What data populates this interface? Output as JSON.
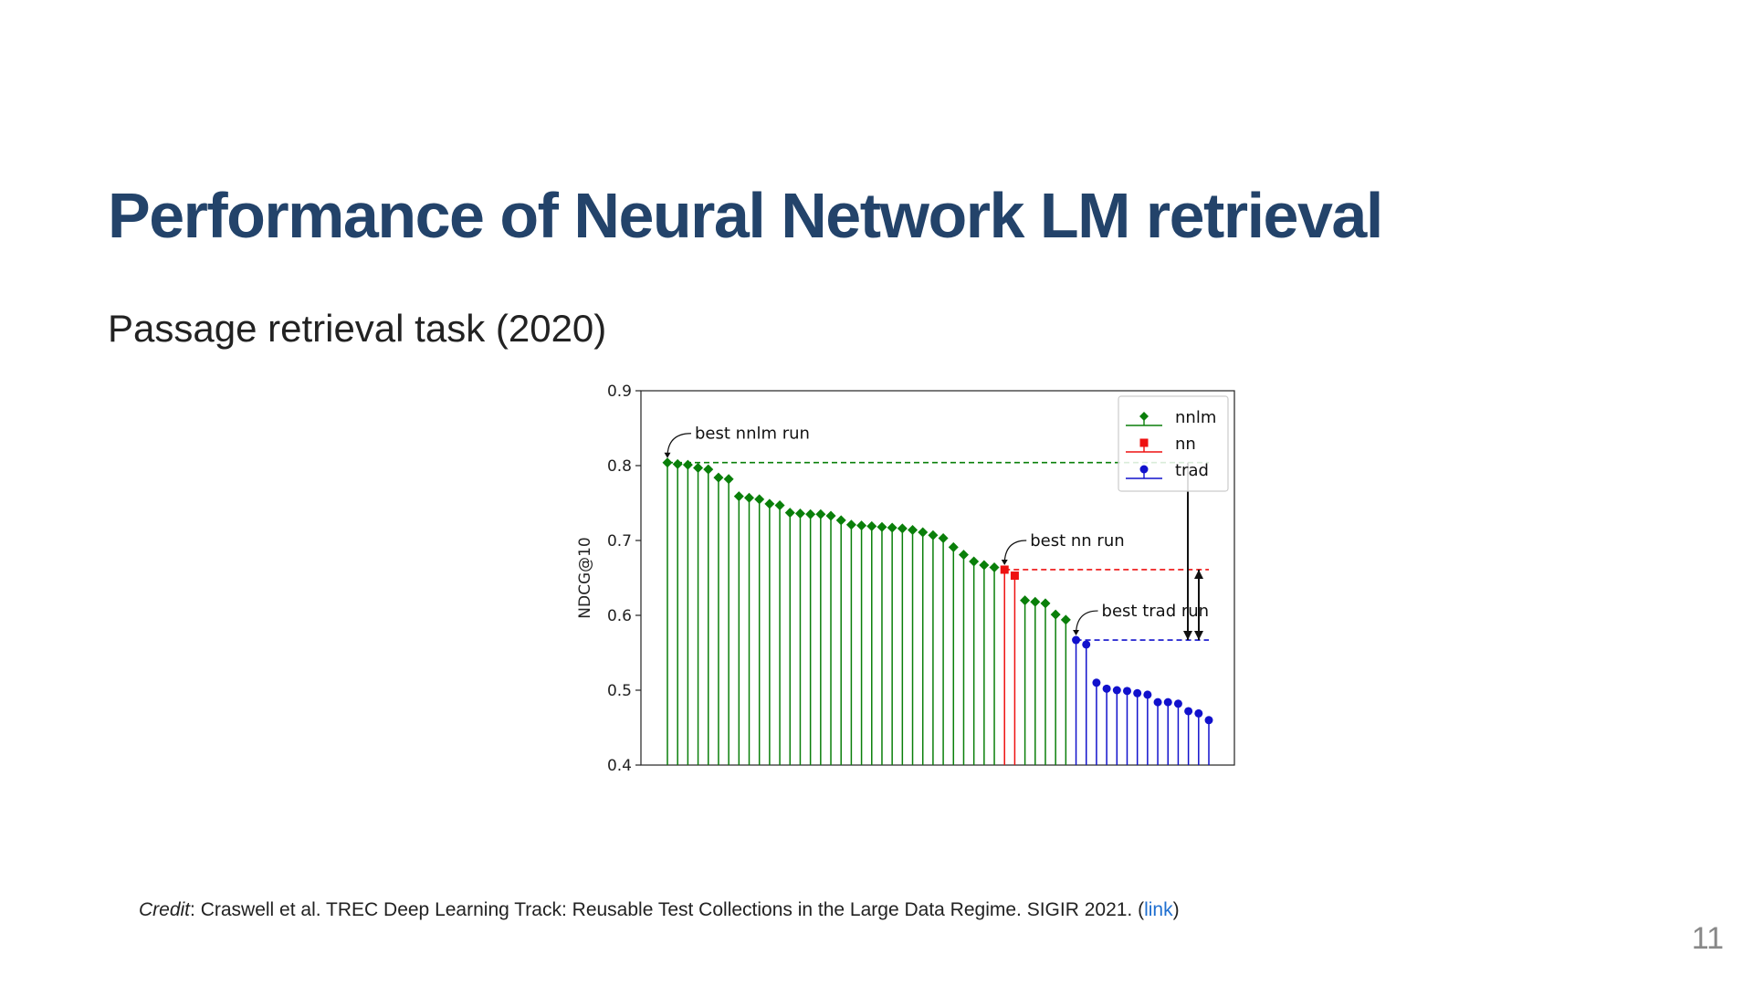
{
  "slide": {
    "title": "Performance of Neural Network LM retrieval",
    "subtitle": "Passage retrieval task (2020)",
    "credit_label": "Credit",
    "credit_text": ": Craswell et al. TREC Deep Learning Track: Reusable Test Collections in the Large Data Regime. SIGIR 2021. (",
    "credit_link": "link",
    "credit_close": ")",
    "page_number": "11"
  },
  "chart_data": {
    "type": "scatter",
    "title": "",
    "xlabel": "",
    "ylabel": "NDCG@10",
    "ylim": [
      0.4,
      0.9
    ],
    "yticks": [
      "0.4",
      "0.5",
      "0.6",
      "0.7",
      "0.8",
      "0.9"
    ],
    "grid": false,
    "legend_position": "top-right",
    "series": [
      {
        "name": "nnlm",
        "marker": "diamond",
        "color": "#0a7f0a",
        "values": [
          0.804,
          0.802,
          0.801,
          0.797,
          0.795,
          0.784,
          0.782,
          0.759,
          0.757,
          0.755,
          0.749,
          0.747,
          0.737,
          0.736,
          0.735,
          0.735,
          0.733,
          0.727,
          0.721,
          0.72,
          0.719,
          0.718,
          0.717,
          0.716,
          0.714,
          0.711,
          0.707,
          0.703,
          0.691,
          0.681,
          0.672,
          0.667,
          0.664
        ]
      },
      {
        "name": "nn",
        "marker": "square",
        "color": "#ee1111",
        "values": [
          0.661,
          0.653
        ]
      },
      {
        "name": "nnlm",
        "marker": "diamond",
        "color": "#0a7f0a",
        "legend": false,
        "values": [
          0.62,
          0.618,
          0.616,
          0.601,
          0.594
        ]
      },
      {
        "name": "trad",
        "marker": "circle",
        "color": "#1111cc",
        "values": [
          0.567,
          0.561,
          0.51,
          0.502,
          0.5,
          0.499,
          0.496,
          0.494,
          0.484,
          0.484,
          0.482,
          0.472,
          0.469,
          0.46
        ]
      }
    ],
    "annotations": [
      {
        "text": "best nnlm run",
        "target_index": 0
      },
      {
        "text": "best nn run",
        "target_index": 33
      },
      {
        "text": "best trad run",
        "target_index": 40
      }
    ],
    "reference_lines": [
      {
        "y": 0.804,
        "color": "#0a7f0a",
        "from_index": 0
      },
      {
        "y": 0.661,
        "color": "#ee1111",
        "from_index": 33
      },
      {
        "y": 0.567,
        "color": "#1111cc",
        "from_index": 40
      }
    ]
  }
}
